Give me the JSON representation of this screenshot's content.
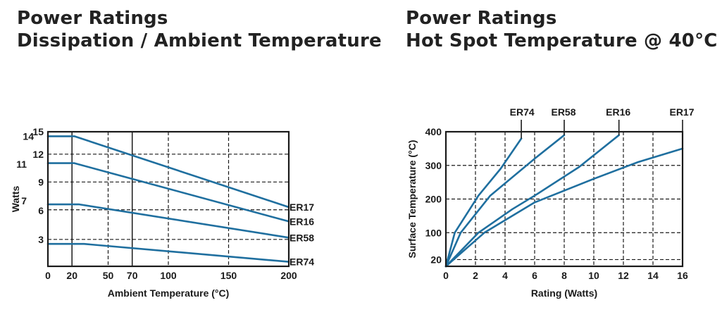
{
  "chart_data": [
    {
      "type": "line",
      "title": [
        "Power Ratings",
        "Dissipation / Ambient Temperature"
      ],
      "xlabel": "Ambient Temperature (°C)",
      "ylabel": "Watts",
      "xlim": [
        0,
        200
      ],
      "ylim": [
        0,
        15
      ],
      "x_ticks": [
        {
          "value": 0,
          "label": "0"
        },
        {
          "value": 20,
          "label": "20"
        },
        {
          "value": 50,
          "label": "50"
        },
        {
          "value": 70,
          "label": "70"
        },
        {
          "value": 100,
          "label": "100"
        },
        {
          "value": 150,
          "label": "150"
        },
        {
          "value": 200,
          "label": "200"
        }
      ],
      "y_ticks": [
        {
          "value": 3,
          "label": "3"
        },
        {
          "value": 6.2,
          "label": "6"
        },
        {
          "value": 7.3,
          "label": "7"
        },
        {
          "value": 9.4,
          "label": "9"
        },
        {
          "value": 11.4,
          "label": "11"
        },
        {
          "value": 12.5,
          "label": "12"
        },
        {
          "value": 14.5,
          "label": "14"
        },
        {
          "value": 15,
          "label": "15"
        }
      ],
      "grid_x": [
        {
          "value": 20,
          "style": "solid"
        },
        {
          "value": 50,
          "style": "dashed"
        },
        {
          "value": 70,
          "style": "solid"
        },
        {
          "value": 100,
          "style": "dashed"
        },
        {
          "value": 150,
          "style": "dashed"
        }
      ],
      "grid_y": [
        3,
        6.3,
        9.4,
        12.5
      ],
      "series": [
        {
          "name": "ER17",
          "points": [
            [
              0,
              14.5
            ],
            [
              22,
              14.5
            ],
            [
              200,
              6.6
            ]
          ]
        },
        {
          "name": "ER16",
          "points": [
            [
              0,
              11.5
            ],
            [
              22,
              11.5
            ],
            [
              200,
              5.0
            ]
          ]
        },
        {
          "name": "ER58",
          "points": [
            [
              0,
              6.9
            ],
            [
              26,
              6.9
            ],
            [
              200,
              3.2
            ]
          ]
        },
        {
          "name": "ER74",
          "points": [
            [
              0,
              2.5
            ],
            [
              30,
              2.5
            ],
            [
              200,
              0.5
            ]
          ]
        }
      ],
      "colors": {
        "line": "#1f6f9f",
        "frame": "#1a1a1a",
        "grid": "#1a1a1a"
      }
    },
    {
      "type": "line",
      "title": [
        "Power Ratings",
        "Hot Spot Temperature @ 40°C"
      ],
      "xlabel": "Rating (Watts)",
      "ylabel": "Surface Temperature (°C)",
      "xlim": [
        0,
        16
      ],
      "ylim": [
        0,
        400
      ],
      "x_ticks": [
        {
          "value": 0,
          "label": "0"
        },
        {
          "value": 2,
          "label": "2"
        },
        {
          "value": 4,
          "label": "4"
        },
        {
          "value": 6,
          "label": "6"
        },
        {
          "value": 8,
          "label": "8"
        },
        {
          "value": 10,
          "label": "10"
        },
        {
          "value": 12,
          "label": "12"
        },
        {
          "value": 14,
          "label": "14"
        },
        {
          "value": 16,
          "label": "16"
        }
      ],
      "y_ticks": [
        {
          "value": 20,
          "label": "20"
        },
        {
          "value": 100,
          "label": "100"
        },
        {
          "value": 200,
          "label": "200"
        },
        {
          "value": 300,
          "label": "300"
        },
        {
          "value": 400,
          "label": "400"
        }
      ],
      "grid_x": [
        2,
        4,
        6,
        8,
        10,
        12,
        14
      ],
      "grid_y": [
        20,
        100,
        200,
        300
      ],
      "series": [
        {
          "name": "ER74",
          "points": [
            [
              0,
              0
            ],
            [
              0.6,
              100
            ],
            [
              2.2,
              210
            ],
            [
              3.7,
              290
            ],
            [
              5.1,
              380
            ]
          ],
          "label_x": 5.2
        },
        {
          "name": "ER58",
          "points": [
            [
              0,
              0
            ],
            [
              1.0,
              100
            ],
            [
              3.0,
              210
            ],
            [
              6.0,
              320
            ],
            [
              8.0,
              390
            ]
          ],
          "label_x": 8.0
        },
        {
          "name": "ER16",
          "points": [
            [
              0,
              0
            ],
            [
              2.2,
              100
            ],
            [
              4.5,
              170
            ],
            [
              6.0,
              210
            ],
            [
              9.0,
              295
            ],
            [
              11.7,
              390
            ]
          ],
          "label_x": 11.7
        },
        {
          "name": "ER17",
          "points": [
            [
              0,
              0
            ],
            [
              2.6,
              100
            ],
            [
              6.0,
              190
            ],
            [
              10.0,
              260
            ],
            [
              13.0,
              310
            ],
            [
              16.0,
              350
            ]
          ],
          "label_x": 16.0
        }
      ],
      "colors": {
        "line": "#1f6f9f",
        "frame": "#1a1a1a",
        "grid": "#1a1a1a"
      }
    }
  ]
}
